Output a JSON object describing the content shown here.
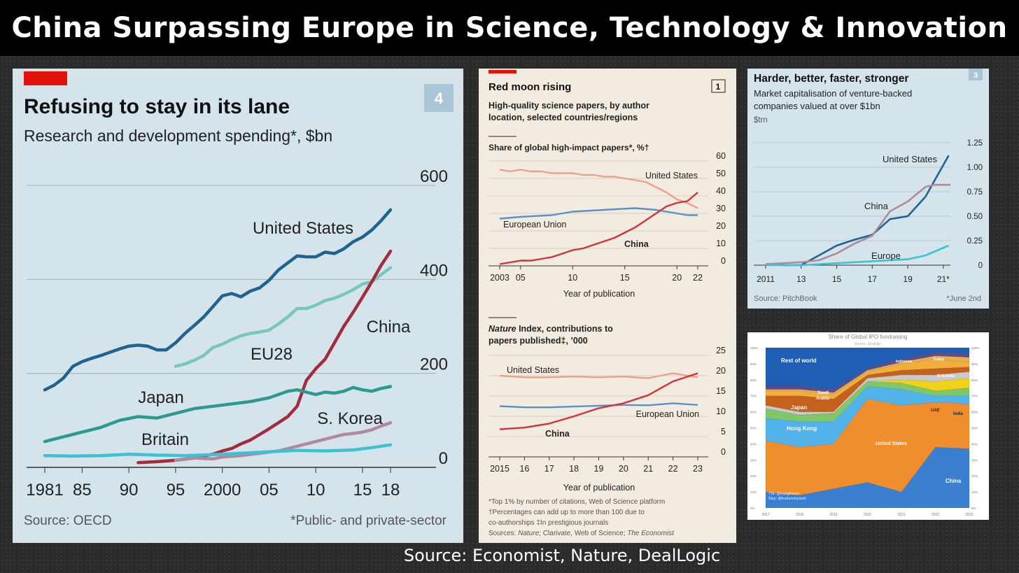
{
  "header": {
    "title": "China Surpassing Europe in Science, Technology & Innovation"
  },
  "footer": {
    "source": "Source: Economist, Nature, DealLogic"
  },
  "colors": {
    "us": "#1f6391",
    "eu": "#78c7be",
    "china": "#a32b3e",
    "japan": "#2b9a92",
    "skorea": "#b08a9c",
    "britain": "#3ec1d2"
  },
  "chart_data": [
    {
      "type": "line",
      "badge": "4",
      "title": "Refusing to stay in its lane",
      "subtitle": "Research and development spending*, $bn",
      "source": "Source: OECD",
      "footnote": "*Public- and private-sector",
      "x_ticks": [
        "1981",
        "85",
        "90",
        "95",
        "2000",
        "05",
        "10",
        "15",
        "18"
      ],
      "y_ticks": [
        "600",
        "400",
        "200",
        "0"
      ],
      "ylim": [
        0,
        600
      ],
      "xlim": [
        1981,
        2018
      ],
      "grid": true,
      "series": [
        {
          "name": "United States",
          "color": "#1f6391",
          "x": [
            1981,
            1982,
            1983,
            1984,
            1985,
            1986,
            1987,
            1988,
            1989,
            1990,
            1991,
            1992,
            1993,
            1994,
            1995,
            1996,
            1997,
            1998,
            1999,
            2000,
            2001,
            2002,
            2003,
            2004,
            2005,
            2006,
            2007,
            2008,
            2009,
            2010,
            2011,
            2012,
            2013,
            2014,
            2015,
            2016,
            2017,
            2018
          ],
          "values": [
            165,
            175,
            190,
            215,
            225,
            232,
            238,
            245,
            252,
            258,
            260,
            258,
            250,
            250,
            265,
            285,
            302,
            320,
            342,
            365,
            370,
            363,
            375,
            382,
            398,
            420,
            435,
            450,
            448,
            448,
            458,
            455,
            465,
            480,
            490,
            505,
            525,
            548
          ]
        },
        {
          "name": "EU28",
          "color": "#78c7be",
          "x": [
            1995,
            1996,
            1997,
            1998,
            1999,
            2000,
            2001,
            2002,
            2003,
            2004,
            2005,
            2006,
            2007,
            2008,
            2009,
            2010,
            2011,
            2012,
            2013,
            2014,
            2015,
            2016,
            2017,
            2018
          ],
          "values": [
            215,
            220,
            228,
            238,
            255,
            262,
            272,
            280,
            285,
            288,
            292,
            305,
            320,
            338,
            338,
            345,
            355,
            360,
            368,
            378,
            390,
            395,
            410,
            425
          ]
        },
        {
          "name": "China",
          "color": "#a32b3e",
          "x": [
            1991,
            1993,
            1995,
            1997,
            1999,
            2000,
            2001,
            2002,
            2003,
            2004,
            2005,
            2006,
            2007,
            2008,
            2009,
            2010,
            2011,
            2012,
            2013,
            2014,
            2015,
            2016,
            2017,
            2018
          ],
          "values": [
            10,
            12,
            15,
            20,
            28,
            35,
            40,
            50,
            58,
            70,
            82,
            95,
            108,
            130,
            185,
            210,
            230,
            265,
            300,
            330,
            362,
            395,
            430,
            460
          ]
        },
        {
          "name": "Japan",
          "color": "#2b9a92",
          "x": [
            1981,
            1983,
            1985,
            1987,
            1989,
            1991,
            1993,
            1995,
            1997,
            1999,
            2001,
            2003,
            2005,
            2007,
            2008,
            2009,
            2010,
            2011,
            2012,
            2013,
            2014,
            2015,
            2016,
            2017,
            2018
          ],
          "values": [
            55,
            65,
            75,
            85,
            100,
            108,
            105,
            115,
            125,
            130,
            135,
            140,
            148,
            162,
            165,
            160,
            155,
            160,
            158,
            162,
            170,
            165,
            162,
            168,
            172
          ]
        },
        {
          "name": "S. Korea",
          "color": "#b08a9c",
          "x": [
            1995,
            1997,
            1999,
            2000,
            2002,
            2004,
            2006,
            2008,
            2010,
            2012,
            2013,
            2014,
            2015,
            2016,
            2017,
            2018
          ],
          "values": [
            15,
            20,
            18,
            22,
            25,
            30,
            35,
            45,
            55,
            65,
            70,
            72,
            75,
            80,
            88,
            95
          ]
        },
        {
          "name": "Britain",
          "color": "#3ec1d2",
          "x": [
            1981,
            1984,
            1987,
            1990,
            1993,
            1996,
            1999,
            2002,
            2005,
            2008,
            2011,
            2014,
            2016,
            2018
          ],
          "values": [
            25,
            24,
            25,
            28,
            26,
            25,
            27,
            30,
            33,
            36,
            35,
            37,
            42,
            48
          ]
        }
      ]
    },
    {
      "type": "line",
      "badge": "1",
      "title": "Red moon rising",
      "subtitle": "High-quality science papers, by author location, selected countries/regions",
      "panels": [
        {
          "label": "Share of global high-impact papers*, %†",
          "xlabel": "Year of publication",
          "x_ticks": [
            "2003",
            "05",
            "10",
            "15",
            "20",
            "22"
          ],
          "y_ticks": [
            "60",
            "50",
            "40",
            "30",
            "20",
            "10",
            "0"
          ],
          "ylim": [
            0,
            60
          ],
          "xlim": [
            2003,
            2022
          ],
          "series": [
            {
              "name": "United States",
              "color": "#eba08a",
              "x": [
                2003,
                2004,
                2005,
                2006,
                2007,
                2008,
                2009,
                2010,
                2011,
                2012,
                2013,
                2014,
                2015,
                2016,
                2017,
                2018,
                2019,
                2020,
                2021,
                2022
              ],
              "values": [
                55,
                54,
                55,
                54,
                54,
                53,
                53,
                53,
                52,
                52,
                51,
                51,
                50,
                49,
                48,
                45,
                42,
                38,
                36,
                33
              ]
            },
            {
              "name": "European Union",
              "color": "#5b8fc9",
              "x": [
                2003,
                2005,
                2008,
                2010,
                2013,
                2016,
                2018,
                2020,
                2021,
                2022
              ],
              "values": [
                27,
                28,
                29,
                31,
                32,
                33,
                32,
                30,
                29,
                29
              ]
            },
            {
              "name": "China",
              "color": "#d3313b",
              "x": [
                2003,
                2004,
                2005,
                2006,
                2007,
                2008,
                2009,
                2010,
                2011,
                2012,
                2013,
                2014,
                2015,
                2016,
                2017,
                2018,
                2019,
                2020,
                2021,
                2022
              ],
              "values": [
                1,
                2,
                3,
                3,
                4,
                5,
                7,
                9,
                10,
                12,
                14,
                16,
                19,
                22,
                26,
                30,
                34,
                36,
                37,
                42
              ]
            }
          ]
        },
        {
          "label": "Nature Index, contributions to papers published‡, ’000",
          "xlabel": "Year of publication",
          "x_ticks": [
            "2015",
            "16",
            "17",
            "18",
            "19",
            "20",
            "21",
            "22",
            "23"
          ],
          "y_ticks": [
            "25",
            "20",
            "15",
            "10",
            "5",
            "0"
          ],
          "ylim": [
            0,
            25
          ],
          "xlim": [
            2015,
            2023
          ],
          "series": [
            {
              "name": "United States",
              "color": "#eba08a",
              "x": [
                2015,
                2016,
                2017,
                2018,
                2019,
                2020,
                2021,
                2022,
                2023
              ],
              "values": [
                20,
                19.6,
                19.6,
                19.8,
                19.6,
                19.8,
                19.4,
                20.6,
                19.6
              ]
            },
            {
              "name": "European Union",
              "color": "#5b8fc9",
              "x": [
                2015,
                2016,
                2017,
                2018,
                2019,
                2020,
                2021,
                2022,
                2023
              ],
              "values": [
                12.5,
                12.2,
                12.2,
                12.4,
                12.6,
                12.8,
                12.7,
                13.2,
                12.8
              ]
            },
            {
              "name": "China",
              "color": "#d3313b",
              "x": [
                2015,
                2016,
                2017,
                2018,
                2019,
                2020,
                2021,
                2022,
                2023
              ],
              "values": [
                6.8,
                7.2,
                8.2,
                10,
                12,
                13.2,
                15.2,
                18.6,
                20.6
              ]
            }
          ]
        }
      ],
      "footnotes": [
        "*Top 1% by number of citations, Web of Science platform",
        "†Percentages can add up to more than 100 due to",
        "co-authorships   ‡In prestigious journals",
        "Sources: Nature; Clarivate, Web of Science; The Economist"
      ]
    },
    {
      "type": "line",
      "badge": "3",
      "title": "Harder, better, faster, stronger",
      "subtitle": "Market capitalisation of venture-backed companies valued at over $1bn",
      "unit": "$trn",
      "source": "Source: PitchBook",
      "footnote": "*June 2nd",
      "x_ticks": [
        "2011",
        "13",
        "15",
        "17",
        "19",
        "21*"
      ],
      "y_ticks": [
        "1.25",
        "1.00",
        "0.75",
        "0.50",
        "0.25",
        "0"
      ],
      "ylim": [
        0,
        1.25
      ],
      "xlim": [
        2011,
        2021.4
      ],
      "series": [
        {
          "name": "United States",
          "color": "#1f6391",
          "x": [
            2011,
            2012,
            2013,
            2014,
            2015,
            2016,
            2017,
            2018,
            2019,
            2020,
            2021.3
          ],
          "values": [
            0.01,
            0,
            0,
            0.1,
            0.2,
            0.26,
            0.31,
            0.47,
            0.5,
            0.7,
            1.12
          ]
        },
        {
          "name": "China",
          "color": "#b08a9c",
          "x": [
            2011,
            2012,
            2013,
            2014,
            2015,
            2016,
            2017,
            2018,
            2019,
            2020,
            2020.5,
            2021.4
          ],
          "values": [
            0.01,
            0.02,
            0.03,
            0.05,
            0.12,
            0.22,
            0.3,
            0.55,
            0.65,
            0.8,
            0.82,
            0.82
          ]
        },
        {
          "name": "Europe",
          "color": "#3ec1d2",
          "x": [
            2011,
            2013,
            2015,
            2017,
            2019,
            2020,
            2021.3
          ],
          "values": [
            0,
            0,
            0.02,
            0.04,
            0.06,
            0.1,
            0.2
          ]
        }
      ]
    },
    {
      "type": "area",
      "title": "Share of Global IPO fundraising",
      "subtitle": "Source: Dealogic",
      "credit": [
        "TW: @KangKexin",
        "Sisy: @hudsontockett"
      ],
      "categories": [
        "2017",
        "2018",
        "2019",
        "2020",
        "2021",
        "2022",
        "2023"
      ],
      "y_ticks": [
        "100%",
        "90%",
        "80%",
        "70%",
        "60%",
        "50%",
        "40%",
        "30%",
        "20%",
        "10%",
        "0%"
      ],
      "series": [
        {
          "name": "China",
          "color": "#3a7fd0",
          "values": [
            10,
            8,
            12,
            16,
            10,
            38,
            37
          ]
        },
        {
          "name": "United States",
          "color": "#f08e2e",
          "values": [
            32,
            30,
            28,
            52,
            54,
            28,
            28
          ]
        },
        {
          "name": "Hong Kong",
          "color": "#52b3ea",
          "values": [
            14,
            16,
            14,
            8,
            10,
            4,
            5
          ]
        },
        {
          "name": "Japan",
          "color": "#7ec868",
          "values": [
            6,
            4,
            5,
            3,
            4,
            3,
            5
          ]
        },
        {
          "name": "UAE",
          "color": "#f3d119",
          "values": [
            0,
            0,
            0,
            0,
            2,
            6,
            6
          ]
        },
        {
          "name": "India",
          "color": "#c9c9c9",
          "values": [
            2,
            2,
            1,
            2,
            3,
            4,
            4
          ]
        },
        {
          "name": "Saudi Arabia",
          "color": "#c4621d",
          "values": [
            6,
            10,
            8,
            2,
            3,
            4,
            3
          ]
        },
        {
          "name": "S Korea",
          "color": "#f1ae3b",
          "values": [
            3,
            3,
            3,
            2,
            4,
            6,
            3
          ]
        },
        {
          "name": "Turkey",
          "color": "#e7b04a",
          "values": [
            1,
            1,
            1,
            1,
            1,
            2,
            3
          ]
        },
        {
          "name": "Indonesia",
          "color": "#5f4a8c",
          "values": [
            2,
            2,
            2,
            1,
            2,
            2,
            2
          ]
        },
        {
          "name": "Rest of world",
          "color": "#1f5fb3",
          "values": [
            24,
            24,
            26,
            13,
            7,
            3,
            4
          ]
        }
      ]
    }
  ]
}
